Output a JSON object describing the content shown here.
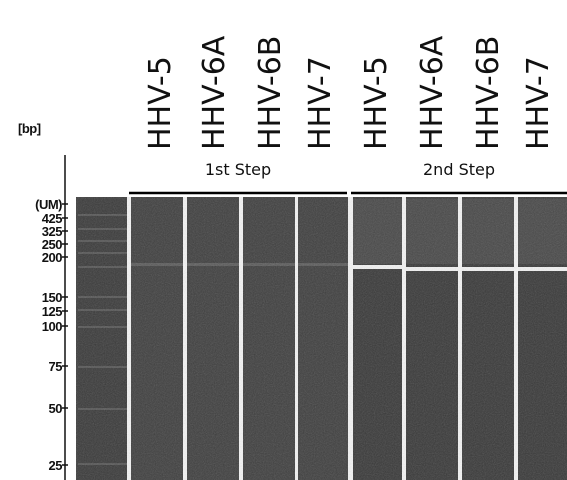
{
  "unit_label": "[bp]",
  "groups": [
    "1st Step",
    "2nd Step"
  ],
  "lanes": [
    "HHV-5",
    "HHV-6A",
    "HHV-6B",
    "HHV-7",
    "HHV-5",
    "HHV-6A",
    "HHV-6B",
    "HHV-7"
  ],
  "ladder": [
    "(UM)",
    "425",
    "325",
    "250",
    "200",
    "150",
    "125",
    "100",
    "75",
    "50",
    "25"
  ]
}
